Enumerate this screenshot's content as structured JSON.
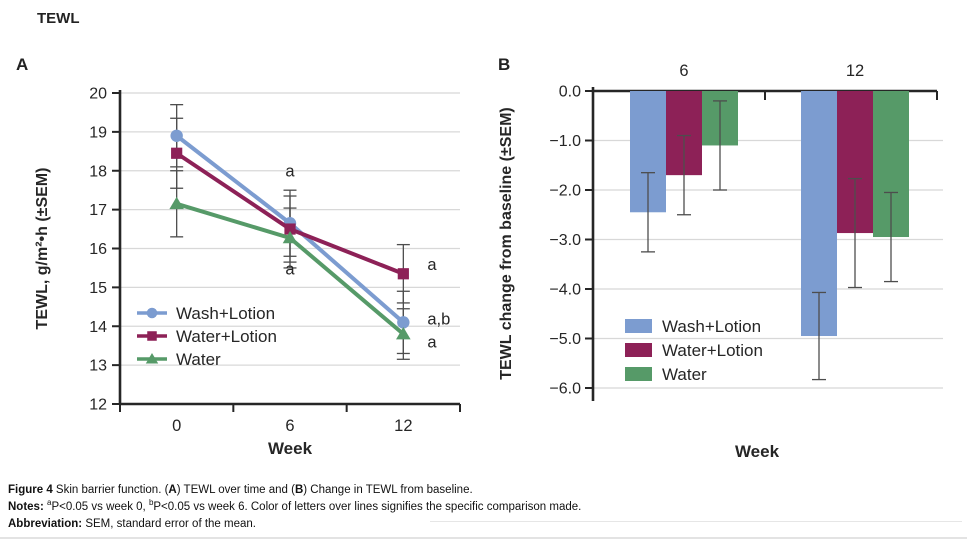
{
  "header": {
    "title": "TEWL"
  },
  "panels": {
    "a_label": "A",
    "b_label": "B"
  },
  "colors": {
    "wash_lotion_blue": "#7C9CD0",
    "water_lotion_maroon": "#8D2157",
    "water_green": "#569A68",
    "error_bar_gray": "#4d4d4d",
    "grid_gray": "#d8d8d8",
    "axis_black": "#262626"
  },
  "chart_data": [
    {
      "type": "line",
      "panel": "A",
      "x_categories": [
        "0",
        "6",
        "12"
      ],
      "xlabel": "Week",
      "ylabel": "TEWL, g/m²•h (±SEM)",
      "ylim": [
        12,
        20
      ],
      "yticks": [
        "12",
        "13",
        "14",
        "15",
        "16",
        "17",
        "18",
        "19",
        "20"
      ],
      "grid": true,
      "legend_position": "lower-left-inside",
      "series": [
        {
          "name": "Wash+Lotion",
          "color": "#7C9CD0",
          "marker": "circle",
          "values": [
            18.9,
            16.65,
            14.1
          ],
          "sem": [
            0.8,
            0.85,
            0.8
          ]
        },
        {
          "name": "Water+Lotion",
          "color": "#8D2157",
          "marker": "square",
          "values": [
            18.45,
            16.5,
            15.35
          ],
          "sem": [
            0.9,
            0.85,
            0.75
          ]
        },
        {
          "name": "Water",
          "color": "#569A68",
          "marker": "triangle",
          "values": [
            17.15,
            16.27,
            13.8
          ],
          "sem": [
            0.85,
            0.77,
            0.65
          ]
        }
      ],
      "annotations": [
        {
          "text": "a",
          "series": "Wash+Lotion",
          "x_index": 1,
          "y": 17.85,
          "anchor": "middle",
          "dx": 0
        },
        {
          "text": "a",
          "series": "Water+Lotion",
          "x_index": 1,
          "y": 15.33,
          "anchor": "middle",
          "dx": 0
        },
        {
          "text": "a",
          "series": "Water+Lotion",
          "x_index": 2,
          "y": 15.45,
          "anchor": "start",
          "dx": 24
        },
        {
          "text": "a,b",
          "series": "Wash+Lotion",
          "x_index": 2,
          "y": 14.05,
          "anchor": "start",
          "dx": 24
        },
        {
          "text": "a",
          "series": "Water",
          "x_index": 2,
          "y": 13.45,
          "anchor": "start",
          "dx": 24
        }
      ]
    },
    {
      "type": "bar",
      "panel": "B",
      "group_labels": [
        "6",
        "12"
      ],
      "xlabel": "Week",
      "ylabel": "TEWL change from baseline (±SEM)",
      "ylim": [
        -6,
        0
      ],
      "ytick_labels": [
        "0.0",
        "−1.0",
        "−2.0",
        "−3.0",
        "−4.0",
        "−5.0",
        "−6.0"
      ],
      "grid": true,
      "legend_position": "lower-left-inside",
      "series": [
        {
          "name": "Wash+Lotion",
          "color": "#7C9CD0",
          "values": [
            -2.45,
            -4.95
          ],
          "sem": [
            0.8,
            0.88
          ]
        },
        {
          "name": "Water+Lotion",
          "color": "#8D2157",
          "values": [
            -1.7,
            -2.87
          ],
          "sem": [
            0.8,
            1.1
          ]
        },
        {
          "name": "Water",
          "color": "#569A68",
          "values": [
            -1.1,
            -2.95
          ],
          "sem": [
            0.9,
            0.9
          ]
        }
      ]
    }
  ],
  "caption": {
    "lines": [
      {
        "name": "caption-line-1",
        "segments": [
          {
            "text": "Figure 4",
            "bold": true
          },
          {
            "text": " Skin barrier function. ("
          },
          {
            "text": "A",
            "bold": true
          },
          {
            "text": ") TEWL over time and ("
          },
          {
            "text": "B",
            "bold": true
          },
          {
            "text": ") Change in TEWL from baseline."
          }
        ]
      },
      {
        "name": "caption-line-2",
        "segments": [
          {
            "text": "Notes: ",
            "bold": true
          },
          {
            "text": "a",
            "sup": true
          },
          {
            "text": "P<0.05 vs week 0, "
          },
          {
            "text": "b",
            "sup": true
          },
          {
            "text": "P<0.05 vs week 6. Color of letters over lines signifies the specific comparison made."
          }
        ]
      },
      {
        "name": "caption-line-3",
        "segments": [
          {
            "text": "Abbreviation: ",
            "bold": true
          },
          {
            "text": "SEM, standard error of the mean."
          }
        ]
      }
    ]
  }
}
